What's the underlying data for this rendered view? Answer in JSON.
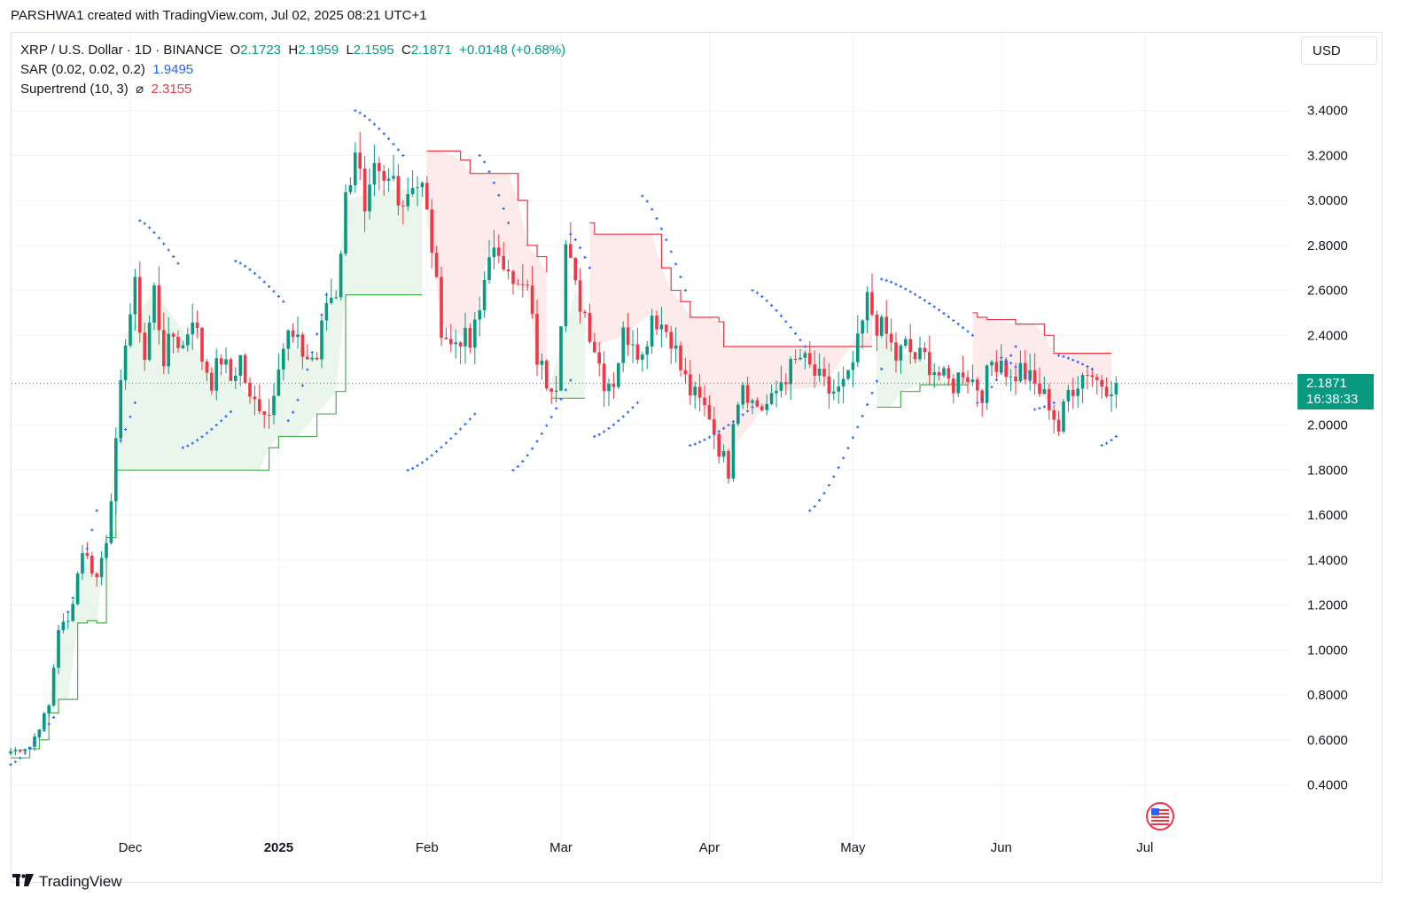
{
  "header": {
    "text": "PARSHWA1 created with TradingView.com, Jul 02, 2025 08:21 UTC+1"
  },
  "legend": {
    "symbol": "XRP / U.S. Dollar · 1D · BINANCE",
    "o_label": "O",
    "o_value": "2.1723",
    "h_label": "H",
    "h_value": "2.1959",
    "l_label": "L",
    "l_value": "2.1595",
    "c_label": "C",
    "c_value": "2.1871",
    "change": "+0.0148 (+0.68%)",
    "sar_label": "SAR (0.02, 0.02, 0.2)",
    "sar_value": "1.9495",
    "supertrend_label": "Supertrend (10, 3)",
    "supertrend_icon": "eye-off-icon",
    "supertrend_value": "2.3155"
  },
  "currency": "USD",
  "price_tag": {
    "price": "2.1871",
    "countdown": "16:38:33"
  },
  "footer": {
    "brand": "TradingView",
    "logo_icon": "tradingview-logo-icon"
  },
  "colors": {
    "up": "#089981",
    "down": "#f23645",
    "sar": "#2962ff",
    "supertrend_up": "#4caf50",
    "supertrend_down": "#f23645",
    "fill_up": "#e8f5e9",
    "fill_down": "#fde8e8",
    "grid": "#f0f3fa"
  },
  "chart_data": {
    "type": "candlestick",
    "title": "XRP / U.S. Dollar · 1D · BINANCE",
    "ylim": [
      0.3,
      3.65
    ],
    "y_ticks": [
      "3.4000",
      "3.2000",
      "3.0000",
      "2.8000",
      "2.6000",
      "2.4000",
      "2.2000",
      "2.0000",
      "1.8000",
      "1.6000",
      "1.4000",
      "1.2000",
      "1.0000",
      "0.8000",
      "0.6000",
      "0.4000"
    ],
    "y_tick_values": [
      3.4,
      3.2,
      3.0,
      2.8,
      2.6,
      2.4,
      2.2,
      2.0,
      1.8,
      1.6,
      1.4,
      1.2,
      1.0,
      0.8,
      0.6,
      0.4
    ],
    "x_ticks": [
      {
        "label": "Dec",
        "day": 25,
        "bold": false
      },
      {
        "label": "2025",
        "day": 56,
        "bold": true
      },
      {
        "label": "Feb",
        "day": 87,
        "bold": false
      },
      {
        "label": "Mar",
        "day": 115,
        "bold": false
      },
      {
        "label": "Apr",
        "day": 146,
        "bold": false
      },
      {
        "label": "May",
        "day": 176,
        "bold": false
      },
      {
        "label": "Jun",
        "day": 207,
        "bold": false
      },
      {
        "label": "Jul",
        "day": 237,
        "bold": false
      }
    ],
    "last_close": 2.1871,
    "close_anchors": [
      [
        0,
        0.55
      ],
      [
        4,
        0.57
      ],
      [
        8,
        0.75
      ],
      [
        10,
        1.1
      ],
      [
        12,
        1.12
      ],
      [
        15,
        1.45
      ],
      [
        18,
        1.32
      ],
      [
        20,
        1.5
      ],
      [
        22,
        1.9
      ],
      [
        24,
        2.4
      ],
      [
        26,
        2.6
      ],
      [
        28,
        2.3
      ],
      [
        30,
        2.6
      ],
      [
        32,
        2.3
      ],
      [
        34,
        2.4
      ],
      [
        36,
        2.35
      ],
      [
        38,
        2.5
      ],
      [
        40,
        2.3
      ],
      [
        42,
        2.2
      ],
      [
        44,
        2.3
      ],
      [
        46,
        2.2
      ],
      [
        48,
        2.3
      ],
      [
        50,
        2.1
      ],
      [
        52,
        2.1
      ],
      [
        54,
        2.05
      ],
      [
        56,
        2.3
      ],
      [
        58,
        2.4
      ],
      [
        60,
        2.35
      ],
      [
        62,
        2.3
      ],
      [
        64,
        2.3
      ],
      [
        66,
        2.55
      ],
      [
        68,
        2.6
      ],
      [
        70,
        3.0
      ],
      [
        72,
        3.25
      ],
      [
        73,
        3.1
      ],
      [
        74,
        2.9
      ],
      [
        76,
        3.1
      ],
      [
        78,
        3.05
      ],
      [
        80,
        3.1
      ],
      [
        82,
        3.0
      ],
      [
        84,
        3.1
      ],
      [
        86,
        3.05
      ],
      [
        88,
        2.8
      ],
      [
        89,
        2.6
      ],
      [
        90,
        2.45
      ],
      [
        92,
        2.35
      ],
      [
        94,
        2.4
      ],
      [
        96,
        2.35
      ],
      [
        98,
        2.5
      ],
      [
        100,
        2.8
      ],
      [
        102,
        2.7
      ],
      [
        104,
        2.75
      ],
      [
        106,
        2.6
      ],
      [
        108,
        2.6
      ],
      [
        110,
        2.3
      ],
      [
        112,
        2.2
      ],
      [
        114,
        2.2
      ],
      [
        116,
        2.8
      ],
      [
        118,
        2.6
      ],
      [
        120,
        2.5
      ],
      [
        122,
        2.35
      ],
      [
        124,
        2.2
      ],
      [
        126,
        2.2
      ],
      [
        128,
        2.4
      ],
      [
        130,
        2.4
      ],
      [
        132,
        2.3
      ],
      [
        134,
        2.5
      ],
      [
        136,
        2.45
      ],
      [
        138,
        2.4
      ],
      [
        140,
        2.25
      ],
      [
        142,
        2.15
      ],
      [
        144,
        2.1
      ],
      [
        146,
        2.05
      ],
      [
        148,
        1.9
      ],
      [
        150,
        1.8
      ],
      [
        151,
        2.05
      ],
      [
        153,
        2.2
      ],
      [
        155,
        2.1
      ],
      [
        157,
        2.08
      ],
      [
        159,
        2.1
      ],
      [
        161,
        2.2
      ],
      [
        163,
        2.25
      ],
      [
        165,
        2.3
      ],
      [
        167,
        2.25
      ],
      [
        169,
        2.2
      ],
      [
        171,
        2.15
      ],
      [
        173,
        2.15
      ],
      [
        175,
        2.2
      ],
      [
        177,
        2.35
      ],
      [
        179,
        2.55
      ],
      [
        181,
        2.45
      ],
      [
        183,
        2.4
      ],
      [
        185,
        2.3
      ],
      [
        187,
        2.35
      ],
      [
        189,
        2.3
      ],
      [
        191,
        2.3
      ],
      [
        193,
        2.25
      ],
      [
        195,
        2.2
      ],
      [
        197,
        2.18
      ],
      [
        199,
        2.25
      ],
      [
        201,
        2.2
      ],
      [
        203,
        2.15
      ],
      [
        205,
        2.28
      ],
      [
        207,
        2.3
      ],
      [
        209,
        2.2
      ],
      [
        211,
        2.25
      ],
      [
        213,
        2.2
      ],
      [
        215,
        2.15
      ],
      [
        217,
        2.1
      ],
      [
        219,
        1.98
      ],
      [
        221,
        2.15
      ],
      [
        223,
        2.2
      ],
      [
        225,
        2.25
      ],
      [
        227,
        2.2
      ],
      [
        229,
        2.18
      ],
      [
        231,
        2.19
      ]
    ],
    "sar_segments": [
      {
        "side": "below",
        "start": 0,
        "end": 9,
        "from": 0.49,
        "to": 0.7
      },
      {
        "side": "below",
        "start": 10,
        "end": 18,
        "from": 1.08,
        "to": 1.62
      },
      {
        "side": "below",
        "start": 22,
        "end": 26,
        "from": 1.9,
        "to": 2.1
      },
      {
        "side": "above",
        "start": 27,
        "end": 35,
        "from": 2.91,
        "to": 2.72
      },
      {
        "side": "below",
        "start": 36,
        "end": 46,
        "from": 1.9,
        "to": 2.06
      },
      {
        "side": "above",
        "start": 47,
        "end": 57,
        "from": 2.73,
        "to": 2.55
      },
      {
        "side": "below",
        "start": 58,
        "end": 66,
        "from": 2.02,
        "to": 2.58
      },
      {
        "side": "above",
        "start": 72,
        "end": 82,
        "from": 3.4,
        "to": 3.2
      },
      {
        "side": "below",
        "start": 83,
        "end": 97,
        "from": 1.8,
        "to": 2.05
      },
      {
        "side": "above",
        "start": 98,
        "end": 104,
        "from": 3.2,
        "to": 2.9
      },
      {
        "side": "below",
        "start": 105,
        "end": 117,
        "from": 1.8,
        "to": 2.2
      },
      {
        "side": "above",
        "start": 117,
        "end": 121,
        "from": 2.85,
        "to": 2.7
      },
      {
        "side": "below",
        "start": 122,
        "end": 131,
        "from": 1.95,
        "to": 2.1
      },
      {
        "side": "above",
        "start": 132,
        "end": 141,
        "from": 3.02,
        "to": 2.6
      },
      {
        "side": "below",
        "start": 142,
        "end": 155,
        "from": 1.91,
        "to": 2.08
      },
      {
        "side": "above",
        "start": 155,
        "end": 166,
        "from": 2.6,
        "to": 2.35
      },
      {
        "side": "below",
        "start": 167,
        "end": 182,
        "from": 1.62,
        "to": 2.25
      },
      {
        "side": "above",
        "start": 182,
        "end": 201,
        "from": 2.65,
        "to": 2.4
      },
      {
        "side": "below",
        "start": 202,
        "end": 210,
        "from": 2.1,
        "to": 2.35
      },
      {
        "side": "above",
        "start": 207,
        "end": 213,
        "from": 2.3,
        "to": 2.2
      },
      {
        "side": "below",
        "start": 214,
        "end": 218,
        "from": 2.07,
        "to": 2.1
      },
      {
        "side": "above",
        "start": 219,
        "end": 226,
        "from": 2.31,
        "to": 2.25
      },
      {
        "side": "below",
        "start": 228,
        "end": 231,
        "from": 1.91,
        "to": 1.95
      }
    ],
    "supertrend": [
      {
        "side": "up",
        "points": [
          [
            0,
            0.52
          ],
          [
            4,
            0.56
          ],
          [
            6,
            0.6
          ],
          [
            8,
            0.72
          ],
          [
            10,
            0.78
          ],
          [
            12,
            0.78
          ],
          [
            14,
            1.12
          ],
          [
            16,
            1.13
          ],
          [
            18,
            1.12
          ],
          [
            20,
            1.5
          ],
          [
            22,
            1.8
          ],
          [
            24,
            1.8
          ],
          [
            30,
            1.8
          ],
          [
            40,
            1.8
          ],
          [
            52,
            1.8
          ],
          [
            54,
            1.9
          ],
          [
            56,
            1.95
          ],
          [
            60,
            1.95
          ],
          [
            64,
            2.05
          ],
          [
            68,
            2.15
          ],
          [
            70,
            2.58
          ],
          [
            78,
            2.58
          ],
          [
            86,
            2.58
          ]
        ]
      },
      {
        "side": "down",
        "points": [
          [
            87,
            3.22
          ],
          [
            90,
            3.22
          ],
          [
            94,
            3.18
          ],
          [
            96,
            3.12
          ],
          [
            100,
            3.12
          ],
          [
            104,
            3.12
          ],
          [
            106,
            3.0
          ],
          [
            108,
            2.8
          ],
          [
            110,
            2.75
          ],
          [
            112,
            2.68
          ]
        ]
      },
      {
        "side": "up",
        "points": [
          [
            113,
            2.12
          ],
          [
            118,
            2.12
          ],
          [
            120,
            2.12
          ]
        ]
      },
      {
        "side": "down",
        "points": [
          [
            121,
            2.9
          ],
          [
            122,
            2.85
          ],
          [
            128,
            2.85
          ],
          [
            134,
            2.85
          ],
          [
            136,
            2.7
          ],
          [
            138,
            2.6
          ],
          [
            140,
            2.55
          ],
          [
            142,
            2.48
          ],
          [
            144,
            2.48
          ],
          [
            146,
            2.48
          ],
          [
            148,
            2.46
          ],
          [
            149,
            2.35
          ],
          [
            160,
            2.35
          ],
          [
            170,
            2.35
          ],
          [
            180,
            2.35
          ]
        ]
      },
      {
        "side": "up",
        "points": [
          [
            181,
            2.08
          ],
          [
            184,
            2.08
          ],
          [
            186,
            2.15
          ],
          [
            190,
            2.18
          ],
          [
            196,
            2.18
          ],
          [
            200,
            2.18
          ]
        ]
      },
      {
        "side": "down",
        "points": [
          [
            201,
            2.5
          ],
          [
            202,
            2.48
          ],
          [
            204,
            2.47
          ],
          [
            210,
            2.45
          ],
          [
            214,
            2.45
          ],
          [
            216,
            2.4
          ],
          [
            218,
            2.32
          ],
          [
            224,
            2.32
          ],
          [
            230,
            2.32
          ]
        ]
      }
    ]
  }
}
